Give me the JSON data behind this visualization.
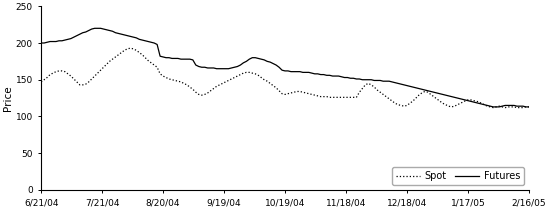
{
  "title": "",
  "ylabel": "Price",
  "ylim": [
    0,
    250
  ],
  "yticks": [
    0,
    50,
    100,
    150,
    200,
    250
  ],
  "xtick_labels": [
    "6/21/04",
    "7/21/04",
    "8/20/04",
    "9/19/04",
    "10/19/04",
    "11/18/04",
    "12/18/04",
    "1/17/05",
    "2/16/05"
  ],
  "legend_labels": [
    "Spot",
    "Futures"
  ],
  "spot_color": "#000000",
  "futures_color": "#000000",
  "background_color": "#ffffff",
  "futures_data": [
    [
      0,
      200
    ],
    [
      2,
      200
    ],
    [
      4,
      201
    ],
    [
      6,
      202
    ],
    [
      8,
      202
    ],
    [
      10,
      202
    ],
    [
      12,
      203
    ],
    [
      14,
      203
    ],
    [
      16,
      204
    ],
    [
      18,
      205
    ],
    [
      20,
      206
    ],
    [
      22,
      208
    ],
    [
      24,
      210
    ],
    [
      26,
      212
    ],
    [
      28,
      214
    ],
    [
      30,
      215
    ],
    [
      32,
      217
    ],
    [
      34,
      219
    ],
    [
      36,
      220
    ],
    [
      38,
      220
    ],
    [
      40,
      220
    ],
    [
      42,
      219
    ],
    [
      44,
      218
    ],
    [
      46,
      217
    ],
    [
      48,
      216
    ],
    [
      50,
      214
    ],
    [
      52,
      213
    ],
    [
      54,
      212
    ],
    [
      56,
      211
    ],
    [
      58,
      210
    ],
    [
      60,
      209
    ],
    [
      62,
      208
    ],
    [
      64,
      207
    ],
    [
      66,
      205
    ],
    [
      68,
      204
    ],
    [
      70,
      203
    ],
    [
      72,
      202
    ],
    [
      74,
      201
    ],
    [
      76,
      200
    ],
    [
      78,
      198
    ],
    [
      80,
      182
    ],
    [
      82,
      181
    ],
    [
      84,
      180
    ],
    [
      86,
      180
    ],
    [
      88,
      179
    ],
    [
      90,
      179
    ],
    [
      92,
      179
    ],
    [
      94,
      178
    ],
    [
      96,
      178
    ],
    [
      98,
      178
    ],
    [
      100,
      178
    ],
    [
      102,
      177
    ],
    [
      104,
      170
    ],
    [
      106,
      168
    ],
    [
      108,
      167
    ],
    [
      110,
      167
    ],
    [
      112,
      166
    ],
    [
      114,
      166
    ],
    [
      116,
      166
    ],
    [
      118,
      165
    ],
    [
      120,
      165
    ],
    [
      122,
      165
    ],
    [
      124,
      165
    ],
    [
      126,
      165
    ],
    [
      128,
      166
    ],
    [
      130,
      167
    ],
    [
      132,
      168
    ],
    [
      134,
      170
    ],
    [
      136,
      173
    ],
    [
      138,
      175
    ],
    [
      140,
      178
    ],
    [
      142,
      180
    ],
    [
      144,
      180
    ],
    [
      146,
      179
    ],
    [
      148,
      178
    ],
    [
      150,
      177
    ],
    [
      152,
      175
    ],
    [
      154,
      174
    ],
    [
      156,
      172
    ],
    [
      158,
      170
    ],
    [
      160,
      167
    ],
    [
      162,
      163
    ],
    [
      164,
      162
    ],
    [
      166,
      162
    ],
    [
      168,
      161
    ],
    [
      170,
      161
    ],
    [
      172,
      161
    ],
    [
      174,
      161
    ],
    [
      176,
      160
    ],
    [
      178,
      160
    ],
    [
      180,
      160
    ],
    [
      182,
      159
    ],
    [
      184,
      158
    ],
    [
      186,
      158
    ],
    [
      188,
      157
    ],
    [
      190,
      157
    ],
    [
      192,
      156
    ],
    [
      194,
      156
    ],
    [
      196,
      155
    ],
    [
      198,
      155
    ],
    [
      200,
      155
    ],
    [
      202,
      154
    ],
    [
      204,
      153
    ],
    [
      206,
      153
    ],
    [
      208,
      152
    ],
    [
      210,
      152
    ],
    [
      212,
      151
    ],
    [
      214,
      151
    ],
    [
      216,
      150
    ],
    [
      218,
      150
    ],
    [
      220,
      150
    ],
    [
      222,
      150
    ],
    [
      224,
      149
    ],
    [
      226,
      149
    ],
    [
      228,
      149
    ],
    [
      230,
      148
    ],
    [
      232,
      148
    ],
    [
      234,
      148
    ],
    [
      236,
      147
    ],
    [
      238,
      146
    ],
    [
      240,
      145
    ],
    [
      242,
      144
    ],
    [
      244,
      143
    ],
    [
      246,
      142
    ],
    [
      248,
      141
    ],
    [
      250,
      140
    ],
    [
      252,
      139
    ],
    [
      254,
      138
    ],
    [
      256,
      137
    ],
    [
      258,
      136
    ],
    [
      260,
      135
    ],
    [
      262,
      134
    ],
    [
      264,
      133
    ],
    [
      266,
      132
    ],
    [
      268,
      131
    ],
    [
      270,
      130
    ],
    [
      272,
      129
    ],
    [
      274,
      128
    ],
    [
      276,
      127
    ],
    [
      278,
      126
    ],
    [
      280,
      125
    ],
    [
      282,
      124
    ],
    [
      284,
      123
    ],
    [
      286,
      122
    ],
    [
      288,
      121
    ],
    [
      290,
      120
    ],
    [
      292,
      119
    ],
    [
      294,
      118
    ],
    [
      296,
      117
    ],
    [
      298,
      116
    ],
    [
      300,
      115
    ],
    [
      302,
      114
    ],
    [
      304,
      113
    ],
    [
      306,
      113
    ],
    [
      308,
      113
    ],
    [
      310,
      114
    ],
    [
      312,
      115
    ],
    [
      314,
      115
    ],
    [
      316,
      115
    ],
    [
      318,
      115
    ],
    [
      320,
      114
    ],
    [
      322,
      114
    ],
    [
      324,
      114
    ],
    [
      326,
      113
    ],
    [
      328,
      113
    ]
  ],
  "spot_data": [
    [
      0,
      147
    ],
    [
      2,
      150
    ],
    [
      4,
      153
    ],
    [
      6,
      157
    ],
    [
      8,
      159
    ],
    [
      10,
      161
    ],
    [
      12,
      162
    ],
    [
      14,
      162
    ],
    [
      16,
      161
    ],
    [
      18,
      158
    ],
    [
      20,
      155
    ],
    [
      22,
      151
    ],
    [
      24,
      147
    ],
    [
      26,
      143
    ],
    [
      28,
      143
    ],
    [
      30,
      144
    ],
    [
      32,
      147
    ],
    [
      34,
      151
    ],
    [
      36,
      155
    ],
    [
      38,
      159
    ],
    [
      40,
      163
    ],
    [
      42,
      167
    ],
    [
      44,
      171
    ],
    [
      46,
      175
    ],
    [
      48,
      178
    ],
    [
      50,
      181
    ],
    [
      52,
      184
    ],
    [
      54,
      187
    ],
    [
      56,
      190
    ],
    [
      58,
      192
    ],
    [
      60,
      193
    ],
    [
      62,
      192
    ],
    [
      64,
      190
    ],
    [
      66,
      187
    ],
    [
      68,
      184
    ],
    [
      70,
      180
    ],
    [
      72,
      176
    ],
    [
      74,
      173
    ],
    [
      76,
      170
    ],
    [
      78,
      167
    ],
    [
      80,
      158
    ],
    [
      82,
      155
    ],
    [
      84,
      153
    ],
    [
      86,
      151
    ],
    [
      88,
      150
    ],
    [
      90,
      149
    ],
    [
      92,
      148
    ],
    [
      94,
      147
    ],
    [
      96,
      145
    ],
    [
      98,
      143
    ],
    [
      100,
      140
    ],
    [
      102,
      137
    ],
    [
      104,
      133
    ],
    [
      106,
      130
    ],
    [
      108,
      129
    ],
    [
      110,
      130
    ],
    [
      112,
      132
    ],
    [
      114,
      135
    ],
    [
      116,
      138
    ],
    [
      118,
      141
    ],
    [
      120,
      143
    ],
    [
      122,
      145
    ],
    [
      124,
      147
    ],
    [
      126,
      149
    ],
    [
      128,
      151
    ],
    [
      130,
      153
    ],
    [
      132,
      155
    ],
    [
      134,
      157
    ],
    [
      136,
      159
    ],
    [
      138,
      160
    ],
    [
      140,
      160
    ],
    [
      142,
      159
    ],
    [
      144,
      158
    ],
    [
      146,
      156
    ],
    [
      148,
      153
    ],
    [
      150,
      150
    ],
    [
      152,
      148
    ],
    [
      154,
      145
    ],
    [
      156,
      142
    ],
    [
      158,
      139
    ],
    [
      160,
      135
    ],
    [
      162,
      131
    ],
    [
      164,
      130
    ],
    [
      166,
      131
    ],
    [
      168,
      132
    ],
    [
      170,
      133
    ],
    [
      172,
      134
    ],
    [
      174,
      134
    ],
    [
      176,
      133
    ],
    [
      178,
      132
    ],
    [
      180,
      131
    ],
    [
      182,
      130
    ],
    [
      184,
      129
    ],
    [
      186,
      128
    ],
    [
      188,
      127
    ],
    [
      190,
      127
    ],
    [
      192,
      127
    ],
    [
      194,
      126
    ],
    [
      196,
      126
    ],
    [
      198,
      126
    ],
    [
      200,
      126
    ],
    [
      202,
      126
    ],
    [
      204,
      126
    ],
    [
      206,
      126
    ],
    [
      208,
      126
    ],
    [
      210,
      126
    ],
    [
      212,
      126
    ],
    [
      214,
      133
    ],
    [
      216,
      138
    ],
    [
      218,
      143
    ],
    [
      220,
      145
    ],
    [
      222,
      143
    ],
    [
      224,
      140
    ],
    [
      226,
      136
    ],
    [
      228,
      133
    ],
    [
      230,
      130
    ],
    [
      232,
      127
    ],
    [
      234,
      124
    ],
    [
      236,
      121
    ],
    [
      238,
      118
    ],
    [
      240,
      116
    ],
    [
      242,
      115
    ],
    [
      244,
      114
    ],
    [
      246,
      115
    ],
    [
      248,
      118
    ],
    [
      250,
      121
    ],
    [
      252,
      125
    ],
    [
      254,
      129
    ],
    [
      256,
      132
    ],
    [
      258,
      134
    ],
    [
      260,
      133
    ],
    [
      262,
      130
    ],
    [
      264,
      127
    ],
    [
      266,
      124
    ],
    [
      268,
      121
    ],
    [
      270,
      118
    ],
    [
      272,
      116
    ],
    [
      274,
      114
    ],
    [
      276,
      113
    ],
    [
      278,
      114
    ],
    [
      280,
      116
    ],
    [
      282,
      118
    ],
    [
      284,
      120
    ],
    [
      286,
      122
    ],
    [
      288,
      123
    ],
    [
      290,
      122
    ],
    [
      292,
      121
    ],
    [
      294,
      120
    ],
    [
      296,
      118
    ],
    [
      298,
      116
    ],
    [
      300,
      114
    ],
    [
      302,
      113
    ],
    [
      304,
      112
    ],
    [
      306,
      113
    ],
    [
      308,
      114
    ],
    [
      310,
      113
    ],
    [
      312,
      112
    ],
    [
      314,
      113
    ],
    [
      316,
      113
    ],
    [
      318,
      113
    ],
    [
      320,
      112
    ],
    [
      322,
      112
    ],
    [
      324,
      112
    ],
    [
      326,
      113
    ],
    [
      328,
      113
    ]
  ]
}
